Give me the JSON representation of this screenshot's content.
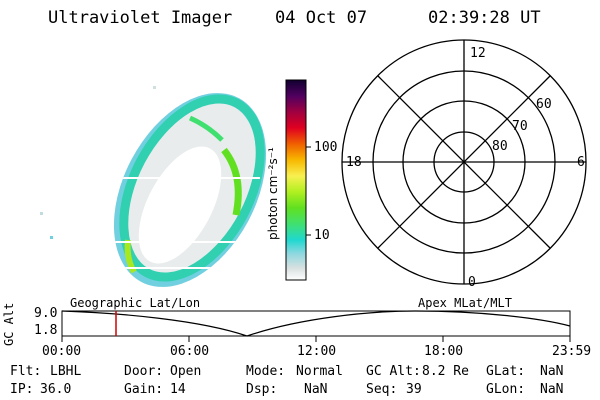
{
  "header": {
    "instrument": "Ultraviolet Imager",
    "date": "04 Oct 07",
    "time": "02:39:28 UT"
  },
  "colorbar": {
    "unit_label": "photon cm⁻²s⁻¹",
    "tick_100": "100",
    "tick_10": "10"
  },
  "polar_plot": {
    "mlt_labels": {
      "top": "12",
      "left": "18",
      "right": "6",
      "bottom": "0"
    },
    "lat_labels": {
      "l60": "60",
      "l70": "70",
      "l80": "80"
    }
  },
  "timeline": {
    "y_label": "GC Alt",
    "y_max": "9.0",
    "y_min": "1.8",
    "left_title": "Geographic Lat/Lon",
    "right_title": "Apex MLat/MLT",
    "x_ticks": [
      "00:00",
      "06:00",
      "12:00",
      "18:00",
      "23:59"
    ],
    "marker_color": "#d00000"
  },
  "status": {
    "flt_label": "Flt:",
    "flt_value": "LBHL",
    "ip_label": "IP:",
    "ip_value": "36.0",
    "door_label": "Door:",
    "door_value": "Open",
    "gain_label": "Gain:",
    "gain_value": "14",
    "mode_label": "Mode:",
    "mode_value": "Normal",
    "dsp_label": "Dsp:",
    "dsp_value": "NaN",
    "gcalt_label": "GC Alt:",
    "gcalt_value": "8.2 Re",
    "seq_label": "Seq:",
    "seq_value": "39",
    "glat_label": "GLat:",
    "glat_value": "NaN",
    "glon_label": "GLon:",
    "glon_value": "NaN"
  }
}
